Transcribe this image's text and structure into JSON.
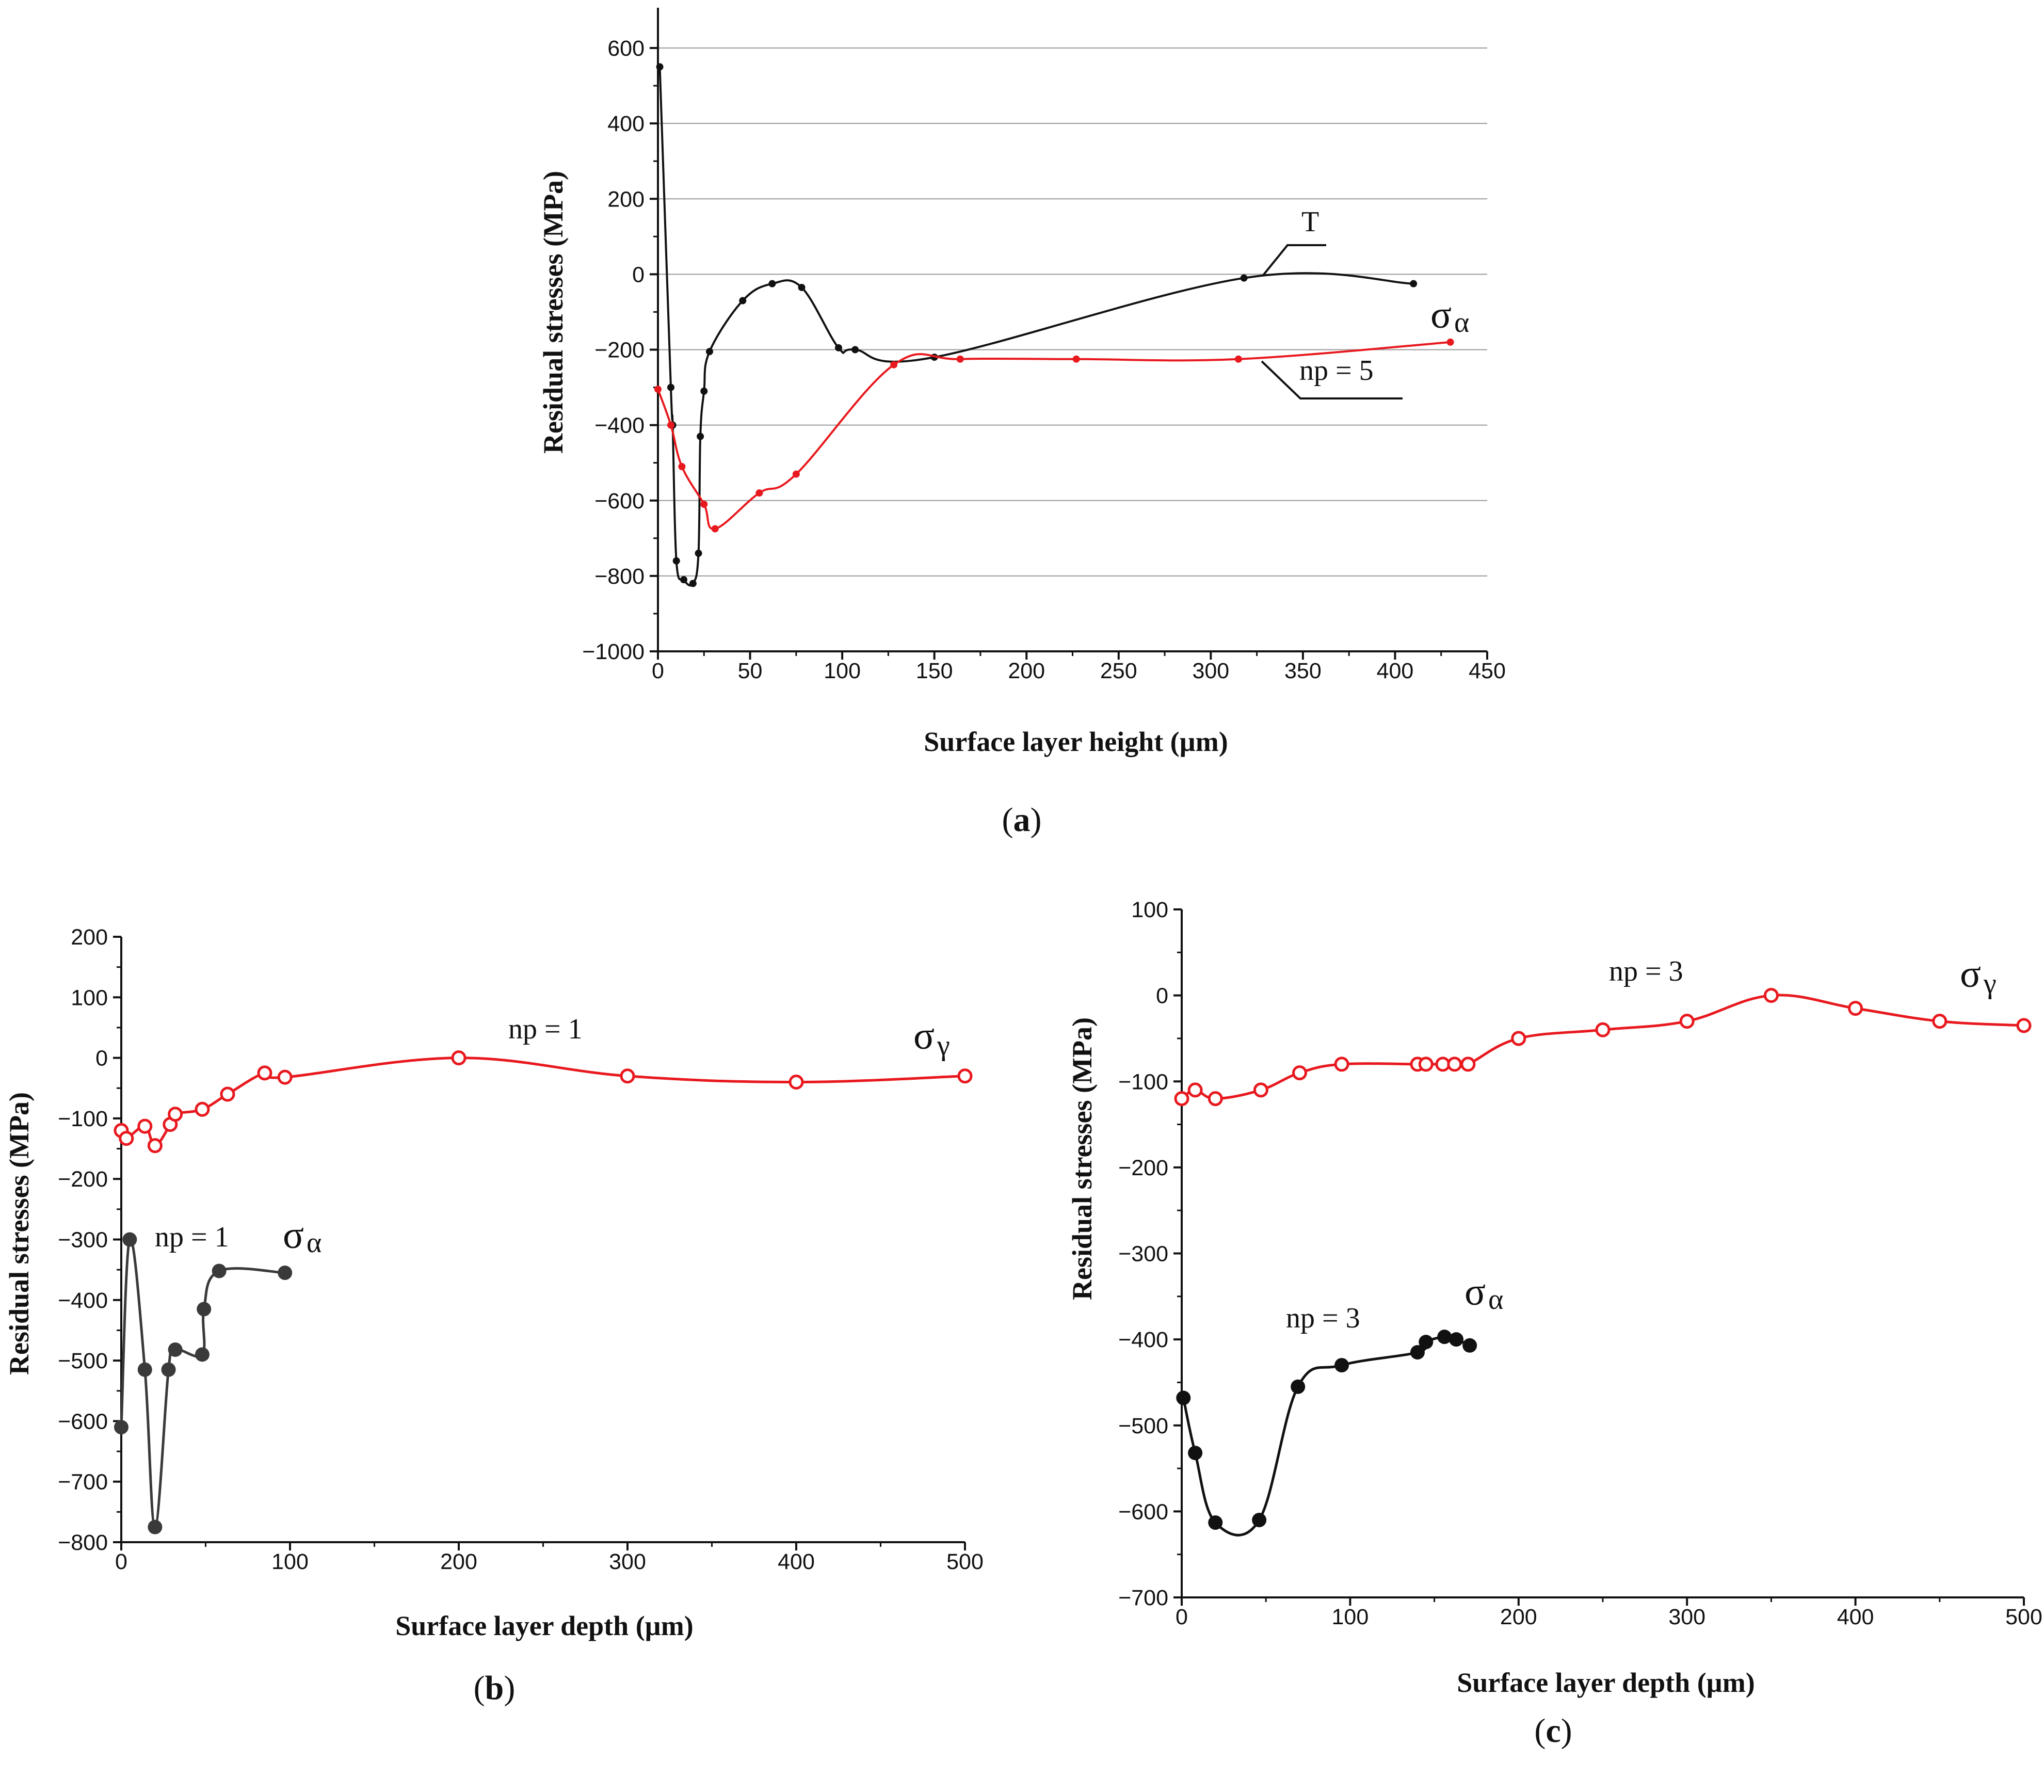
{
  "colors": {
    "black": "#111111",
    "red": "#e8191e",
    "dark": "#3a3a3a",
    "grid": "#9a9a9a"
  },
  "chart_data": [
    {
      "id": "a",
      "type": "line",
      "caption_letter": "a",
      "xlabel": "Surface layer height  (µm)",
      "ylabel": "Residual stresses (MPa)",
      "xlim": [
        0,
        450
      ],
      "ylim": [
        -1000,
        700
      ],
      "xticks": [
        "0",
        "50",
        "100",
        "150",
        "200",
        "250",
        "300",
        "350",
        "400",
        "450"
      ],
      "yticks": [
        "600",
        "400",
        "200",
        "0",
        "−200",
        "−400",
        "−600",
        "−800",
        "−1000"
      ],
      "grid": "horizontal",
      "series": [
        {
          "name": "T",
          "color": "black",
          "marker": "small-dot",
          "x": [
            1,
            7,
            8,
            10,
            14,
            19,
            22,
            23,
            25,
            28,
            46,
            62,
            78,
            98,
            107,
            150,
            318,
            410
          ],
          "y": [
            550,
            -300,
            -400,
            -760,
            -810,
            -820,
            -740,
            -430,
            -310,
            -205,
            -70,
            -25,
            -35,
            -195,
            -200,
            -220,
            -10,
            -25
          ]
        },
        {
          "name": "np = 5",
          "color": "red",
          "marker": "small-dot",
          "x": [
            0,
            7,
            13,
            25,
            31,
            55,
            75,
            128,
            164,
            227,
            315,
            430
          ],
          "y": [
            -305,
            -400,
            -510,
            -610,
            -675,
            -580,
            -530,
            -240,
            -225,
            -225,
            -225,
            -180
          ]
        }
      ],
      "annotations": {
        "t_label": "T",
        "np_label": "np = 5",
        "sigma": "σ",
        "sigma_sub": "α"
      }
    },
    {
      "id": "b",
      "type": "line",
      "caption_letter": "b",
      "xlabel": "Surface layer depth (µm)",
      "ylabel": "Residual stresses (MPa)",
      "xlim": [
        0,
        500
      ],
      "ylim": [
        -850,
        200
      ],
      "xticks": [
        "0",
        "100",
        "200",
        "300",
        "400",
        "500"
      ],
      "yticks": [
        "200",
        "100",
        "0",
        "−100",
        "−200",
        "−300",
        "−400",
        "−500",
        "−600",
        "−700",
        "−800"
      ],
      "grid": "none",
      "series": [
        {
          "name": "σγ np = 1",
          "color": "red",
          "marker": "open-circle",
          "x": [
            0,
            3,
            14,
            20,
            29,
            32,
            48,
            63,
            85,
            97,
            200,
            300,
            400,
            500
          ],
          "y": [
            -120,
            -133,
            -113,
            -145,
            -110,
            -93,
            -85,
            -60,
            -25,
            -32,
            0,
            -30,
            -40,
            -30
          ]
        },
        {
          "name": "σα np = 1",
          "color": "dark",
          "marker": "filled-circle",
          "x": [
            0,
            5,
            14,
            20,
            28,
            32,
            48,
            49,
            58,
            97
          ],
          "y": [
            -610,
            -300,
            -515,
            -775,
            -515,
            -482,
            -490,
            -415,
            -352,
            -355
          ]
        }
      ],
      "annotations": {
        "np_top": "np = 1",
        "np_bottom": "np = 1",
        "sigma": "σ",
        "sigma_sub_gamma": "γ",
        "sigma_sub_alpha": "α"
      }
    },
    {
      "id": "c",
      "type": "line",
      "caption_letter": "c",
      "xlabel": "Surface layer depth (µm)",
      "ylabel": "Residual stresses (MPa)",
      "xlim": [
        0,
        500
      ],
      "ylim": [
        -700,
        100
      ],
      "xticks": [
        "0",
        "100",
        "200",
        "300",
        "400",
        "500"
      ],
      "yticks": [
        "100",
        "0",
        "−100",
        "−200",
        "−300",
        "−400",
        "−500",
        "−600",
        "−700"
      ],
      "grid": "none",
      "series": [
        {
          "name": "σγ np = 3",
          "color": "red",
          "marker": "open-circle",
          "x": [
            0,
            8,
            20,
            47,
            70,
            95,
            140,
            145,
            155,
            162,
            170,
            200,
            250,
            300,
            350,
            400,
            450,
            500
          ],
          "y": [
            -120,
            -110,
            -120,
            -110,
            -90,
            -80,
            -80,
            -80,
            -80,
            -80,
            -80,
            -50,
            -40,
            -30,
            0,
            -15,
            -30,
            -35
          ],
          "smooth": true
        },
        {
          "name": "σα np = 3",
          "color": "black",
          "marker": "filled-circle",
          "x": [
            1,
            8,
            20,
            46,
            69,
            95,
            140,
            145,
            156,
            163,
            171
          ],
          "y": [
            -468,
            -532,
            -613,
            -610,
            -455,
            -430,
            -415,
            -403,
            -397,
            -400,
            -407
          ]
        }
      ],
      "annotations": {
        "np_top": "np = 3",
        "np_bottom": "np = 3",
        "sigma": "σ",
        "sigma_sub_gamma": "γ",
        "sigma_sub_alpha": "α"
      }
    }
  ]
}
